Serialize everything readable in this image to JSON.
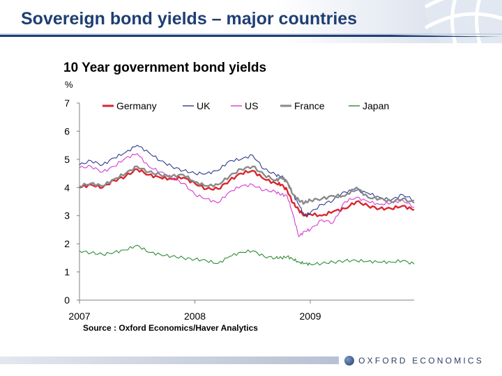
{
  "slide": {
    "title": "Sovereign bond yields – major countries",
    "logo_text": "OXFORD ECONOMICS",
    "colors": {
      "title": "#1f3f73",
      "accent": "#1f3f73"
    }
  },
  "chart_data": {
    "type": "line",
    "title": "10 Year government bond yields",
    "ylabel": "%",
    "xlabel": "",
    "source": "Source : Oxford Economics/Haver Analytics",
    "ylim": [
      0,
      7
    ],
    "yticks": [
      "0",
      "1",
      "2",
      "3",
      "4",
      "5",
      "6",
      "7"
    ],
    "xlim": [
      2007.0,
      2009.9
    ],
    "xticks": [
      {
        "value": 2007.0,
        "label": "2007"
      },
      {
        "value": 2008.0,
        "label": "2008"
      },
      {
        "value": 2009.0,
        "label": "2009"
      }
    ],
    "legend_position": "top",
    "grid": false,
    "x": [
      2007.0,
      2007.1,
      2007.2,
      2007.3,
      2007.4,
      2007.5,
      2007.6,
      2007.7,
      2007.8,
      2007.9,
      2008.0,
      2008.1,
      2008.2,
      2008.3,
      2008.4,
      2008.5,
      2008.6,
      2008.7,
      2008.75,
      2008.8,
      2008.85,
      2008.9,
      2008.95,
      2009.0,
      2009.1,
      2009.2,
      2009.3,
      2009.4,
      2009.5,
      2009.6,
      2009.7,
      2009.8,
      2009.9
    ],
    "series": [
      {
        "name": "Germany",
        "color": "#d9262e",
        "width": 2.4,
        "values": [
          4.0,
          4.1,
          4.0,
          4.25,
          4.4,
          4.65,
          4.45,
          4.35,
          4.3,
          4.35,
          4.15,
          3.95,
          3.95,
          4.25,
          4.5,
          4.6,
          4.3,
          4.15,
          4.1,
          3.9,
          3.45,
          3.2,
          3.0,
          3.05,
          3.0,
          3.15,
          3.25,
          3.5,
          3.35,
          3.25,
          3.25,
          3.35,
          3.2
        ]
      },
      {
        "name": "UK",
        "color": "#2e3b8c",
        "width": 1.1,
        "values": [
          4.8,
          4.95,
          4.8,
          5.05,
          5.25,
          5.5,
          5.25,
          4.95,
          4.75,
          4.6,
          4.5,
          4.5,
          4.6,
          4.95,
          5.0,
          5.15,
          4.65,
          4.45,
          4.4,
          4.2,
          3.75,
          3.4,
          3.0,
          3.1,
          3.4,
          3.55,
          3.85,
          3.9,
          3.8,
          3.65,
          3.55,
          3.75,
          3.55
        ]
      },
      {
        "name": "US",
        "color": "#d43ad0",
        "width": 1.1,
        "values": [
          4.7,
          4.75,
          4.55,
          4.75,
          5.05,
          5.2,
          4.75,
          4.55,
          4.35,
          4.15,
          3.75,
          3.6,
          3.45,
          3.85,
          4.05,
          4.1,
          3.9,
          3.85,
          3.75,
          3.7,
          3.05,
          2.25,
          2.45,
          2.5,
          2.85,
          2.75,
          3.5,
          3.65,
          3.5,
          3.4,
          3.45,
          3.55,
          3.3
        ]
      },
      {
        "name": "France",
        "color": "#8a8a8a",
        "width": 2.4,
        "values": [
          4.05,
          4.15,
          4.05,
          4.3,
          4.5,
          4.75,
          4.55,
          4.45,
          4.4,
          4.45,
          4.2,
          4.05,
          4.1,
          4.4,
          4.65,
          4.75,
          4.45,
          4.25,
          4.35,
          4.2,
          3.75,
          3.55,
          3.45,
          3.55,
          3.6,
          3.7,
          3.7,
          4.0,
          3.65,
          3.6,
          3.5,
          3.6,
          3.45
        ]
      },
      {
        "name": "Japan",
        "color": "#2f8a36",
        "width": 1.1,
        "values": [
          1.75,
          1.68,
          1.62,
          1.7,
          1.78,
          1.95,
          1.7,
          1.62,
          1.55,
          1.5,
          1.45,
          1.4,
          1.3,
          1.55,
          1.7,
          1.75,
          1.55,
          1.5,
          1.5,
          1.55,
          1.45,
          1.35,
          1.3,
          1.28,
          1.3,
          1.35,
          1.4,
          1.4,
          1.38,
          1.35,
          1.35,
          1.4,
          1.28
        ]
      }
    ]
  }
}
